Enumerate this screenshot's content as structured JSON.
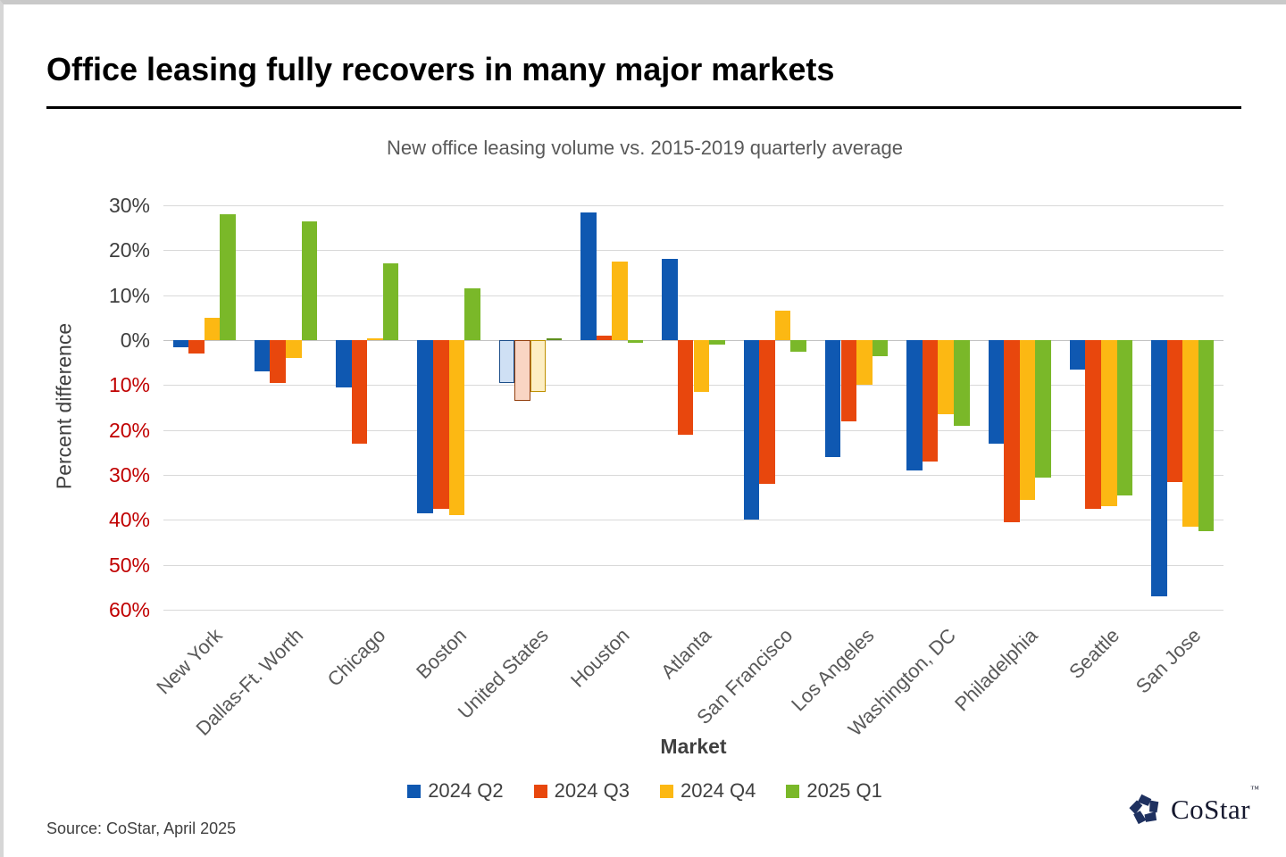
{
  "header": {
    "title": "Office leasing fully recovers in many major markets"
  },
  "chart_data": {
    "type": "bar",
    "title": "New office leasing volume vs. 2015-2019 quarterly average",
    "xlabel": "Market",
    "ylabel": "Percent difference",
    "ylim": [
      -60,
      30
    ],
    "ytick_step": 10,
    "grid": true,
    "legend_position": "bottom",
    "positive_tick_color": "#3f3f3f",
    "negative_tick_color": "#c00000",
    "categories": [
      "New York",
      "Dallas-Ft. Worth",
      "Chicago",
      "Boston",
      "United States",
      "Houston",
      "Atlanta",
      "San Francisco",
      "Los Angeles",
      "Washington, DC",
      "Philadelphia",
      "Seattle",
      "San Jose"
    ],
    "muted_category": "United States",
    "series": [
      {
        "name": "2024 Q2",
        "color": "#0f58b1",
        "muted_fill": "#cfe0f4",
        "muted_border": "#1c4e89",
        "values": [
          -1.5,
          -7,
          -10.5,
          -38.5,
          -9.5,
          28.5,
          18,
          -40,
          -26,
          -29,
          -23,
          -6.5,
          -57
        ]
      },
      {
        "name": "2024 Q3",
        "color": "#e8470d",
        "muted_fill": "#f9d5c3",
        "muted_border": "#93400f",
        "values": [
          -3,
          -9.5,
          -23,
          -37.5,
          -13.5,
          1,
          -21,
          -32,
          -18,
          -27,
          -40.5,
          -37.5,
          -31.5
        ]
      },
      {
        "name": "2024 Q4",
        "color": "#fcb813",
        "muted_fill": "#fdeec3",
        "muted_border": "#bf9000",
        "values": [
          5,
          -4,
          0.5,
          -39,
          -11.5,
          17.5,
          -11.5,
          6.5,
          -10,
          -16.5,
          -35.5,
          -37,
          -41.5
        ]
      },
      {
        "name": "2025 Q1",
        "color": "#7ab829",
        "muted_fill": "#e2efce",
        "muted_border": "#5e8f1d",
        "values": [
          28,
          26.5,
          17,
          11.5,
          0.5,
          -0.5,
          -1,
          -2.5,
          -3.5,
          -19,
          -30.5,
          -34.5,
          -42.5
        ]
      }
    ]
  },
  "footer": {
    "source": "Source: CoStar, April 2025",
    "logo_text": "CoStar",
    "logo_tm": "™"
  }
}
